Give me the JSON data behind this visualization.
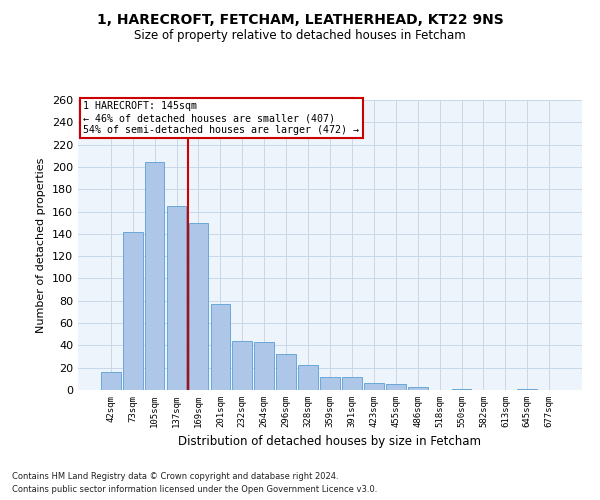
{
  "title1": "1, HARECROFT, FETCHAM, LEATHERHEAD, KT22 9NS",
  "title2": "Size of property relative to detached houses in Fetcham",
  "xlabel": "Distribution of detached houses by size in Fetcham",
  "ylabel": "Number of detached properties",
  "categories": [
    "42sqm",
    "73sqm",
    "105sqm",
    "137sqm",
    "169sqm",
    "201sqm",
    "232sqm",
    "264sqm",
    "296sqm",
    "328sqm",
    "359sqm",
    "391sqm",
    "423sqm",
    "455sqm",
    "486sqm",
    "518sqm",
    "550sqm",
    "582sqm",
    "613sqm",
    "645sqm",
    "677sqm"
  ],
  "values": [
    16,
    142,
    204,
    165,
    150,
    77,
    44,
    43,
    32,
    22,
    12,
    12,
    6,
    5,
    3,
    0,
    1,
    0,
    0,
    1,
    0
  ],
  "bar_color": "#aec6e8",
  "bar_edge_color": "#5a9fd4",
  "vline_x": 3.5,
  "vline_color": "#cc0000",
  "annotation_text": "1 HARECROFT: 145sqm\n← 46% of detached houses are smaller (407)\n54% of semi-detached houses are larger (472) →",
  "annotation_box_color": "#ffffff",
  "annotation_box_edge": "#cc0000",
  "footnote1": "Contains HM Land Registry data © Crown copyright and database right 2024.",
  "footnote2": "Contains public sector information licensed under the Open Government Licence v3.0.",
  "ylim": [
    0,
    260
  ],
  "yticks": [
    0,
    20,
    40,
    60,
    80,
    100,
    120,
    140,
    160,
    180,
    200,
    220,
    240,
    260
  ],
  "grid_color": "#c8d8e8",
  "bg_color": "#eef4fb",
  "fig_width": 6.0,
  "fig_height": 5.0,
  "dpi": 100
}
